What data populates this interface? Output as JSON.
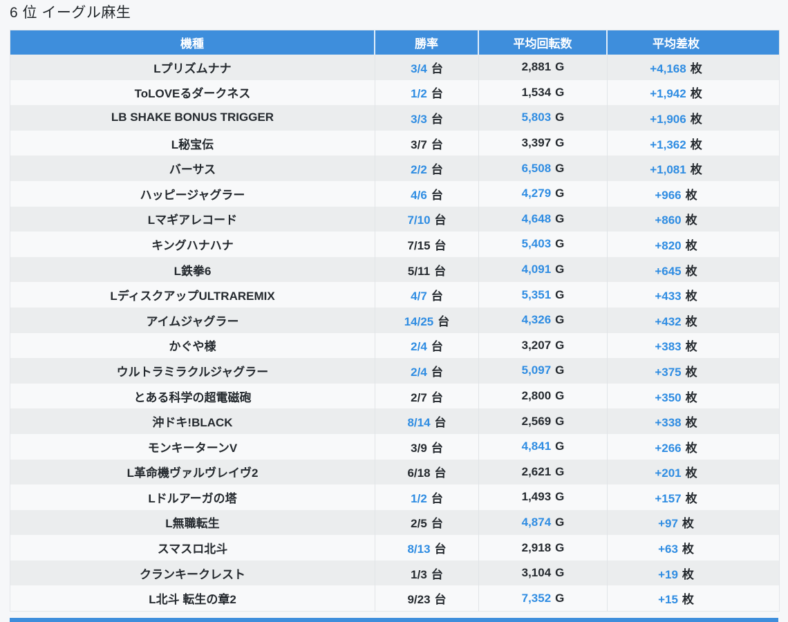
{
  "page": {
    "title": "6 位 イーグル麻生"
  },
  "colors": {
    "header_bg": "#3e8edc",
    "accent_blue": "#2e8ce2",
    "text_dark": "#24292e",
    "row_stripe_odd": "#ebedee",
    "row_stripe_even": "#f8f9fa",
    "page_bg": "#f6f7f9"
  },
  "table": {
    "columns": [
      {
        "key": "name",
        "label": "機種"
      },
      {
        "key": "rate",
        "label": "勝率"
      },
      {
        "key": "spins",
        "label": "平均回転数"
      },
      {
        "key": "diff",
        "label": "平均差枚"
      }
    ],
    "rows": [
      {
        "name": "Lプリズムナナ",
        "rate": "3/4",
        "rate_unit": "台",
        "rate_blue": true,
        "spins": "2,881",
        "spins_unit": "G",
        "spins_blue": false,
        "diff": "+4,168",
        "diff_unit": "枚",
        "diff_blue": true
      },
      {
        "name": "ToLOVEるダークネス",
        "rate": "1/2",
        "rate_unit": "台",
        "rate_blue": true,
        "spins": "1,534",
        "spins_unit": "G",
        "spins_blue": false,
        "diff": "+1,942",
        "diff_unit": "枚",
        "diff_blue": true
      },
      {
        "name": "LB SHAKE BONUS TRIGGER",
        "rate": "3/3",
        "rate_unit": "台",
        "rate_blue": true,
        "spins": "5,803",
        "spins_unit": "G",
        "spins_blue": true,
        "diff": "+1,906",
        "diff_unit": "枚",
        "diff_blue": true
      },
      {
        "name": "L秘宝伝",
        "rate": "3/7",
        "rate_unit": "台",
        "rate_blue": false,
        "spins": "3,397",
        "spins_unit": "G",
        "spins_blue": false,
        "diff": "+1,362",
        "diff_unit": "枚",
        "diff_blue": true
      },
      {
        "name": "バーサス",
        "rate": "2/2",
        "rate_unit": "台",
        "rate_blue": true,
        "spins": "6,508",
        "spins_unit": "G",
        "spins_blue": true,
        "diff": "+1,081",
        "diff_unit": "枚",
        "diff_blue": true
      },
      {
        "name": "ハッピージャグラー",
        "rate": "4/6",
        "rate_unit": "台",
        "rate_blue": true,
        "spins": "4,279",
        "spins_unit": "G",
        "spins_blue": true,
        "diff": "+966",
        "diff_unit": "枚",
        "diff_blue": true
      },
      {
        "name": "Lマギアレコード",
        "rate": "7/10",
        "rate_unit": "台",
        "rate_blue": true,
        "spins": "4,648",
        "spins_unit": "G",
        "spins_blue": true,
        "diff": "+860",
        "diff_unit": "枚",
        "diff_blue": true
      },
      {
        "name": "キングハナハナ",
        "rate": "7/15",
        "rate_unit": "台",
        "rate_blue": false,
        "spins": "5,403",
        "spins_unit": "G",
        "spins_blue": true,
        "diff": "+820",
        "diff_unit": "枚",
        "diff_blue": true
      },
      {
        "name": "L鉄拳6",
        "rate": "5/11",
        "rate_unit": "台",
        "rate_blue": false,
        "spins": "4,091",
        "spins_unit": "G",
        "spins_blue": true,
        "diff": "+645",
        "diff_unit": "枚",
        "diff_blue": true
      },
      {
        "name": "LディスクアップULTRAREMIX",
        "rate": "4/7",
        "rate_unit": "台",
        "rate_blue": true,
        "spins": "5,351",
        "spins_unit": "G",
        "spins_blue": true,
        "diff": "+433",
        "diff_unit": "枚",
        "diff_blue": true
      },
      {
        "name": "アイムジャグラー",
        "rate": "14/25",
        "rate_unit": "台",
        "rate_blue": true,
        "spins": "4,326",
        "spins_unit": "G",
        "spins_blue": true,
        "diff": "+432",
        "diff_unit": "枚",
        "diff_blue": true
      },
      {
        "name": "かぐや様",
        "rate": "2/4",
        "rate_unit": "台",
        "rate_blue": true,
        "spins": "3,207",
        "spins_unit": "G",
        "spins_blue": false,
        "diff": "+383",
        "diff_unit": "枚",
        "diff_blue": true
      },
      {
        "name": "ウルトラミラクルジャグラー",
        "rate": "2/4",
        "rate_unit": "台",
        "rate_blue": true,
        "spins": "5,097",
        "spins_unit": "G",
        "spins_blue": true,
        "diff": "+375",
        "diff_unit": "枚",
        "diff_blue": true
      },
      {
        "name": "とある科学の超電磁砲",
        "rate": "2/7",
        "rate_unit": "台",
        "rate_blue": false,
        "spins": "2,800",
        "spins_unit": "G",
        "spins_blue": false,
        "diff": "+350",
        "diff_unit": "枚",
        "diff_blue": true
      },
      {
        "name": "沖ドキ!BLACK",
        "rate": "8/14",
        "rate_unit": "台",
        "rate_blue": true,
        "spins": "2,569",
        "spins_unit": "G",
        "spins_blue": false,
        "diff": "+338",
        "diff_unit": "枚",
        "diff_blue": true
      },
      {
        "name": "モンキーターンV",
        "rate": "3/9",
        "rate_unit": "台",
        "rate_blue": false,
        "spins": "4,841",
        "spins_unit": "G",
        "spins_blue": true,
        "diff": "+266",
        "diff_unit": "枚",
        "diff_blue": true
      },
      {
        "name": "L革命機ヴァルヴレイヴ2",
        "rate": "6/18",
        "rate_unit": "台",
        "rate_blue": false,
        "spins": "2,621",
        "spins_unit": "G",
        "spins_blue": false,
        "diff": "+201",
        "diff_unit": "枚",
        "diff_blue": true
      },
      {
        "name": "Lドルアーガの塔",
        "rate": "1/2",
        "rate_unit": "台",
        "rate_blue": true,
        "spins": "1,493",
        "spins_unit": "G",
        "spins_blue": false,
        "diff": "+157",
        "diff_unit": "枚",
        "diff_blue": true
      },
      {
        "name": "L無職転生",
        "rate": "2/5",
        "rate_unit": "台",
        "rate_blue": false,
        "spins": "4,874",
        "spins_unit": "G",
        "spins_blue": true,
        "diff": "+97",
        "diff_unit": "枚",
        "diff_blue": true
      },
      {
        "name": "スマスロ北斗",
        "rate": "8/13",
        "rate_unit": "台",
        "rate_blue": true,
        "spins": "2,918",
        "spins_unit": "G",
        "spins_blue": false,
        "diff": "+63",
        "diff_unit": "枚",
        "diff_blue": true
      },
      {
        "name": "クランキークレスト",
        "rate": "1/3",
        "rate_unit": "台",
        "rate_blue": false,
        "spins": "3,104",
        "spins_unit": "G",
        "spins_blue": false,
        "diff": "+19",
        "diff_unit": "枚",
        "diff_blue": true
      },
      {
        "name": "L北斗 転生の章2",
        "rate": "9/23",
        "rate_unit": "台",
        "rate_blue": false,
        "spins": "7,352",
        "spins_unit": "G",
        "spins_blue": true,
        "diff": "+15",
        "diff_unit": "枚",
        "diff_blue": true
      }
    ]
  }
}
